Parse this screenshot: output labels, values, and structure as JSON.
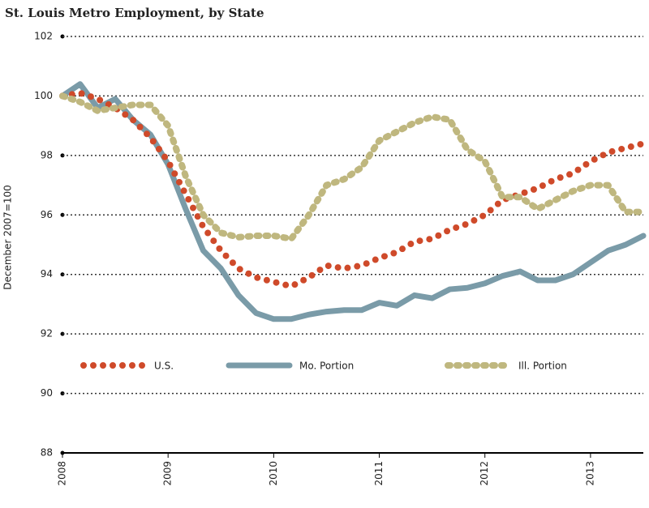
{
  "chart_data": {
    "type": "line",
    "title": "St. Louis Metro Employment, by State",
    "y_label": "December 2007=100",
    "x": [
      2008,
      2008.1667,
      2008.3333,
      2008.5,
      2008.6667,
      2008.8333,
      2009,
      2009.1667,
      2009.3333,
      2009.5,
      2009.6667,
      2009.8333,
      2010,
      2010.1667,
      2010.3333,
      2010.5,
      2010.6667,
      2010.8333,
      2011,
      2011.1667,
      2011.3333,
      2011.5,
      2011.6667,
      2011.8333,
      2012,
      2012.1667,
      2012.3333,
      2012.5,
      2012.6667,
      2012.8333,
      2013,
      2013.1667,
      2013.3333,
      2013.5
    ],
    "series": [
      {
        "name": "U.S.",
        "color": "#cf4a2a",
        "style": "dotted",
        "values": [
          100.0,
          100.1,
          99.9,
          99.6,
          99.2,
          98.6,
          97.8,
          96.7,
          95.6,
          94.8,
          94.2,
          93.9,
          93.75,
          93.6,
          93.9,
          94.3,
          94.2,
          94.3,
          94.55,
          94.75,
          95.1,
          95.2,
          95.5,
          95.7,
          96.0,
          96.5,
          96.7,
          96.9,
          97.2,
          97.4,
          97.8,
          98.1,
          98.25,
          98.4
        ]
      },
      {
        "name": "Mo. Portion",
        "color": "#7a9ba8",
        "style": "solid",
        "values": [
          100.0,
          100.4,
          99.6,
          99.9,
          99.2,
          98.7,
          97.7,
          96.2,
          94.8,
          94.2,
          93.3,
          92.7,
          92.5,
          92.5,
          92.65,
          92.75,
          92.8,
          92.8,
          93.05,
          92.95,
          93.3,
          93.2,
          93.5,
          93.55,
          93.7,
          93.95,
          94.1,
          93.8,
          93.8,
          94.0,
          94.4,
          94.8,
          95.0,
          95.3
        ]
      },
      {
        "name": "Ill. Portion",
        "color": "#bfb77f",
        "style": "dashed",
        "values": [
          100.0,
          99.8,
          99.5,
          99.6,
          99.7,
          99.7,
          99.0,
          97.3,
          96.0,
          95.4,
          95.25,
          95.3,
          95.3,
          95.2,
          96.0,
          97.0,
          97.2,
          97.6,
          98.5,
          98.8,
          99.1,
          99.3,
          99.2,
          98.2,
          97.8,
          96.6,
          96.6,
          96.2,
          96.5,
          96.8,
          97.0,
          97.0,
          96.1,
          96.1
        ]
      }
    ],
    "xlim": [
      2008,
      2013.5
    ],
    "xticks": [
      2008,
      2009,
      2010,
      2011,
      2012,
      2013
    ],
    "ylim": [
      88,
      102
    ],
    "yticks": [
      88,
      90,
      92,
      94,
      96,
      98,
      100,
      102
    ],
    "grid": true,
    "legend": "lower center"
  }
}
